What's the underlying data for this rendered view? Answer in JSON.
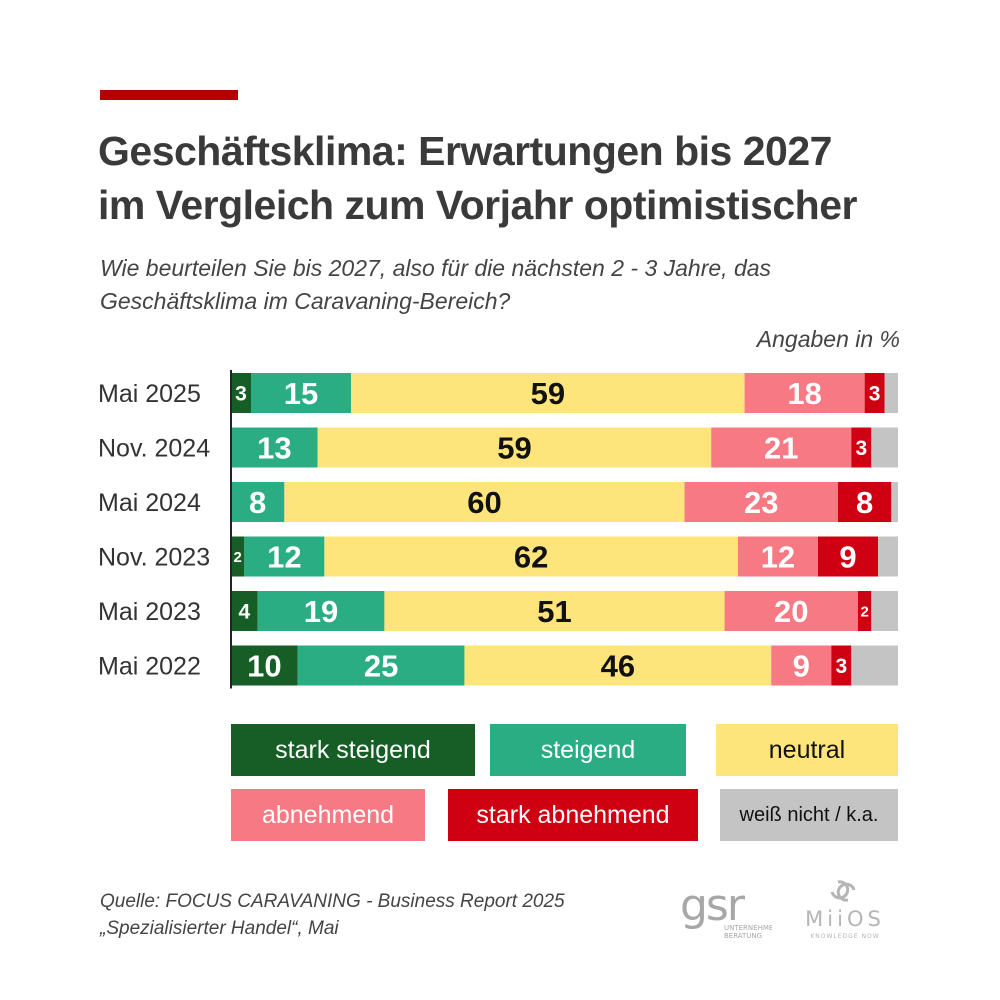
{
  "title_lines": [
    "Geschäftsklima: Erwartungen bis 2027",
    "im Vergleich zum Vorjahr optimistischer"
  ],
  "subtitle_lines": [
    "Wie beurteilen Sie bis 2027, also für die nächsten 2 - 3 Jahre, das",
    "Geschäftsklima im Caravaning-Bereich?"
  ],
  "unit_label": "Angaben in %",
  "chart_data": {
    "type": "bar",
    "orientation": "horizontal",
    "stacked": true,
    "categories": [
      "Mai 2025",
      "Nov. 2024",
      "Mai 2024",
      "Nov. 2023",
      "Mai 2023",
      "Mai 2022"
    ],
    "series": [
      {
        "name": "stark steigend",
        "values": [
          3,
          0,
          0,
          2,
          4,
          10
        ]
      },
      {
        "name": "steigend",
        "values": [
          15,
          13,
          8,
          12,
          19,
          25
        ]
      },
      {
        "name": "neutral",
        "values": [
          59,
          59,
          60,
          62,
          51,
          46
        ]
      },
      {
        "name": "abnehmend",
        "values": [
          18,
          21,
          23,
          12,
          20,
          9
        ]
      },
      {
        "name": "stark abnehmend",
        "values": [
          3,
          3,
          8,
          9,
          2,
          3
        ]
      },
      {
        "name": "weiß nicht / k.a.",
        "values": [
          2,
          4,
          1,
          3,
          4,
          7
        ]
      }
    ],
    "hidden_labels": [
      "weiß nicht / k.a."
    ],
    "xlim": [
      0,
      100
    ],
    "legend_position": "bottom"
  },
  "colors": {
    "accent": "#b30000",
    "stark steigend": "#165e26",
    "steigend": "#2bad83",
    "neutral": "#fde47b",
    "abnehmend": "#f67983",
    "stark abnehmend": "#cf0012",
    "weiß nicht / k.a.": "#c4c4c4",
    "title": "#3a3a3a"
  },
  "source_lines": [
    "Quelle: FOCUS CARAVANING - Business Report 2025",
    "„Spezialisierter Handel“, Mai"
  ],
  "logos": {
    "gsr": {
      "main": "gsr",
      "sub_lines": [
        "UNTERNEHMENS-",
        "BERATUNG"
      ]
    },
    "miios": {
      "main": "MiiOS",
      "sub": "KNOWLEDGE NOW"
    }
  }
}
